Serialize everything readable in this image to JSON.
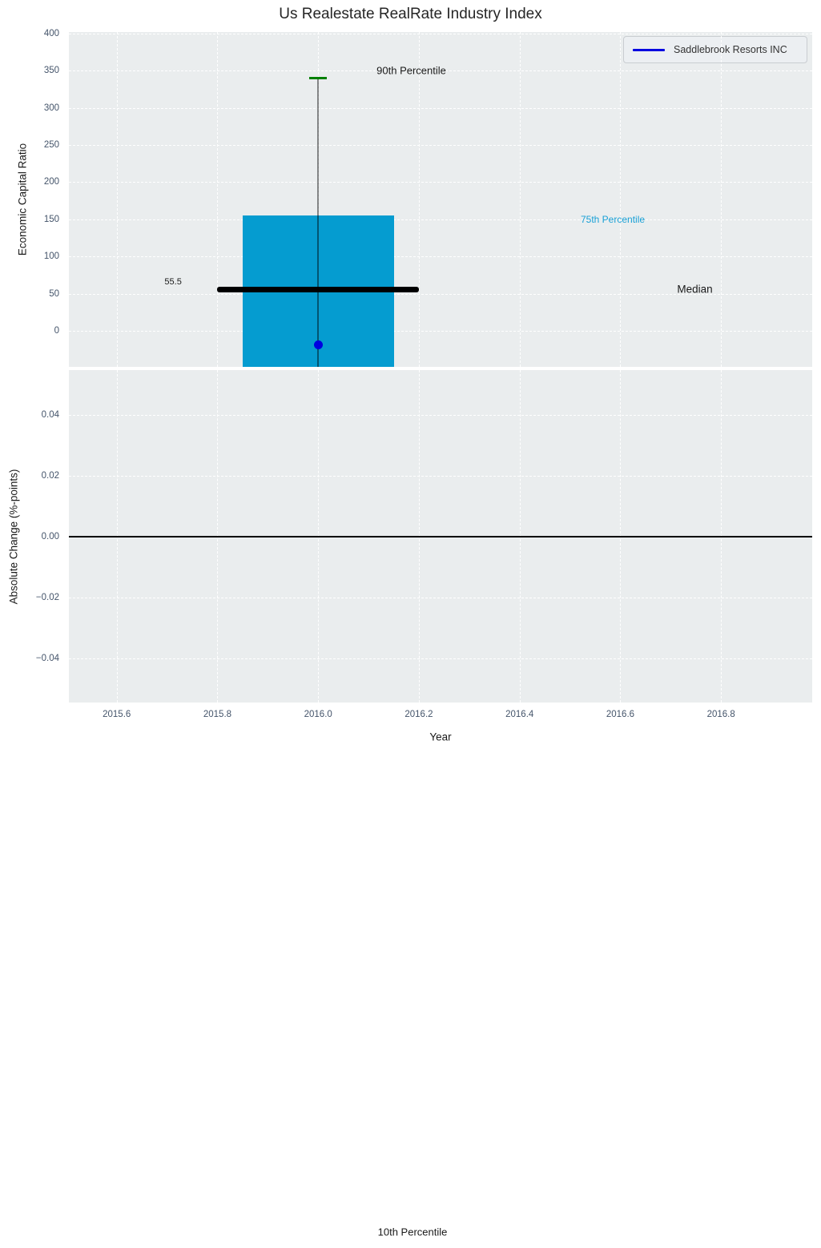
{
  "figure": {
    "title": "Us Realestate RealRate Industry Index",
    "legend": {
      "label": "Saddlebrook Resorts INC",
      "position": "upper right"
    },
    "colors": {
      "bar": "#059cd0",
      "company_blue": "#0000e0",
      "p90_cap_green": "#008000",
      "median_black": "#000000",
      "p75_label_cyan": "#18a0d6",
      "plot_background": "#eaedee",
      "grid": "#ffffff",
      "tick_label": "#44546a"
    }
  },
  "chart_data": [
    {
      "type": "bar",
      "title": "Us Realestate RealRate Industry Index",
      "xlabel": "",
      "ylabel": "Economic Capital Ratio",
      "xlim": [
        2015.505,
        2016.981
      ],
      "ylim": [
        -48.5,
        402
      ],
      "grid": true,
      "legend_position": "upper right",
      "xticks": [
        2015.6,
        2015.8,
        2016.0,
        2016.2,
        2016.4,
        2016.6,
        2016.8
      ],
      "xtick_labels": [
        "2015.6",
        "2015.8",
        "2016.0",
        "2016.2",
        "2016.4",
        "2016.6",
        "2016.8"
      ],
      "yticks": [
        400,
        350,
        300,
        250,
        200,
        150,
        100,
        50,
        0
      ],
      "box": {
        "x": 2016.0,
        "p90": 340,
        "p75": 155.5,
        "median": 55.5,
        "median_label": "55.5",
        "p25": "below visible axis (bar clipped at bottom)",
        "p10": "far below axis (label shown at figure bottom)",
        "bar_x_span": [
          2015.85,
          2016.15
        ],
        "median_x_span": [
          2015.8,
          2016.2
        ]
      },
      "company_point": {
        "name": "Saddlebrook Resorts INC",
        "x": 2016.0,
        "y": -19
      },
      "annotations": [
        {
          "text": "90th Percentile",
          "x": 2016.185,
          "y": 350,
          "color": "#1a1a1a",
          "size": 13
        },
        {
          "text": "75th Percentile",
          "x": 2016.585,
          "y": 150,
          "color": "#18a0d6",
          "size": 12
        },
        {
          "text": "Median",
          "x": 2016.748,
          "y": 56,
          "color": "#1a1a1a",
          "size": 13.5
        },
        {
          "text": "55.5",
          "x": 2015.712,
          "y": 66,
          "color": "#1a1a1a",
          "size": 11
        }
      ]
    },
    {
      "type": "line",
      "xlabel": "Year",
      "ylabel": "Absolute Change (%-points)",
      "xlim": [
        2015.505,
        2016.981
      ],
      "ylim": [
        -0.0545,
        0.0547
      ],
      "grid": true,
      "series": [],
      "zero_line_y": 0,
      "xticks": [
        2015.6,
        2015.8,
        2016.0,
        2016.2,
        2016.4,
        2016.6,
        2016.8
      ],
      "xtick_labels": [
        "2015.6",
        "2015.8",
        "2016.0",
        "2016.2",
        "2016.4",
        "2016.6",
        "2016.8"
      ],
      "yticks": [
        0.04,
        0.02,
        0,
        -0.02,
        -0.04
      ],
      "ytick_labels": [
        "0.04",
        "0.02",
        "0.00",
        "−0.02",
        "−0.04"
      ]
    }
  ],
  "figure_annotations": [
    {
      "text": "10th Percentile"
    }
  ]
}
